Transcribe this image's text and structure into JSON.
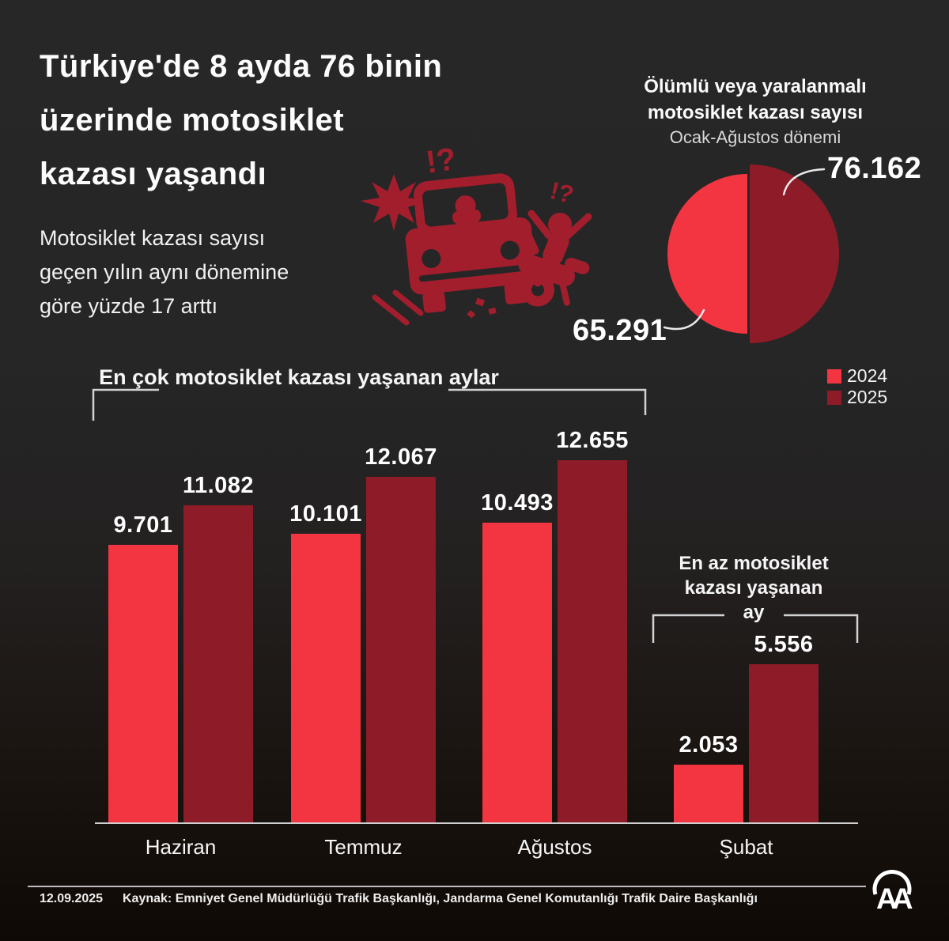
{
  "colors": {
    "background_top": "#272727",
    "background_bottom": "#0f0906",
    "red_2024": "#f23540",
    "red_2025": "#8e1b28",
    "icon_red": "#a21e2d",
    "bracket_gray": "#d2d2d2",
    "text_primary": "#ffffff"
  },
  "header": {
    "title_lines": [
      "Türkiye'de 8 ayda 76 binin",
      "üzerinde motosiklet",
      "kazası yaşandı"
    ],
    "subtitle_lines": [
      "Motosiklet kazası sayısı",
      "geçen yılın aynı dönemine",
      "göre yüzde 17 arttı"
    ]
  },
  "pie_section": {
    "title_line1": "Ölümlü veya yaralanmalı",
    "title_line2": "motosiklet kazası sayısı",
    "period": "Ocak-Ağustos dönemi",
    "label_2025": "76.162",
    "label_2024": "65.291"
  },
  "legend": {
    "items": [
      {
        "label": "2024",
        "color": "#f23540"
      },
      {
        "label": "2025",
        "color": "#8e1b28"
      }
    ]
  },
  "bar_section": {
    "max_title": "En çok motosiklet kazası yaşanan aylar",
    "min_title_lines": [
      "En az motosiklet",
      "kazası yaşanan",
      "ay"
    ]
  },
  "footer": {
    "date": "12.09.2025",
    "source": "Kaynak: Emniyet Genel Müdürlüğü Trafik Başkanlığı, Jandarma Genel Komutanlığı Trafik Daire Başkanlığı",
    "logo": "AA"
  },
  "chart_data": [
    {
      "type": "pie",
      "title": "Ölümlü veya yaralanmalı motosiklet kazası sayısı",
      "subtitle": "Ocak-Ağustos dönemi",
      "slices": [
        {
          "label": "2024",
          "value": 65291,
          "display": "65.291",
          "color": "#f23540"
        },
        {
          "label": "2025",
          "value": 76162,
          "display": "76.162",
          "color": "#8e1b28"
        }
      ],
      "legend_position": "bottom-right"
    },
    {
      "type": "bar",
      "title": "En çok motosiklet kazası yaşanan aylar",
      "annotation": "En az motosiklet kazası yaşanan ay",
      "categories": [
        "Haziran",
        "Temmuz",
        "Ağustos",
        "Şubat"
      ],
      "series": [
        {
          "name": "2024",
          "color": "#f23540",
          "values": [
            9701,
            10101,
            10493,
            2053
          ],
          "labels": [
            "9.701",
            "10.101",
            "10.493",
            "2.053"
          ]
        },
        {
          "name": "2025",
          "color": "#8e1b28",
          "values": [
            11082,
            12067,
            12655,
            5556
          ],
          "labels": [
            "11.082",
            "12.067",
            "12.655",
            "5.556"
          ]
        }
      ],
      "ylim": [
        0,
        12655
      ],
      "grid": false,
      "xlabel": "",
      "ylabel": ""
    }
  ]
}
